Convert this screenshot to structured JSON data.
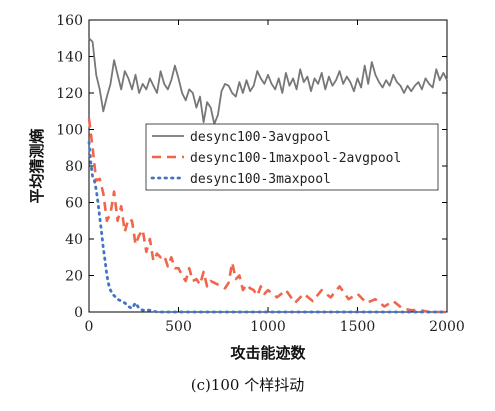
{
  "chart_data": {
    "type": "line",
    "xlabel": "攻击能迹数",
    "ylabel": "平均猜测熵",
    "caption": "(c)100 个样抖动",
    "xlim": [
      0,
      2000
    ],
    "ylim": [
      0,
      160
    ],
    "xticks": [
      0,
      500,
      1000,
      1500,
      2000
    ],
    "yticks": [
      0,
      20,
      40,
      60,
      80,
      100,
      120,
      140,
      160
    ],
    "legend_position": "center-right",
    "series": [
      {
        "name": "desync100-3avgpool",
        "color": "#777777",
        "style": "solid",
        "x": [
          0,
          20,
          40,
          60,
          80,
          100,
          120,
          140,
          160,
          180,
          200,
          220,
          240,
          260,
          280,
          300,
          320,
          340,
          360,
          380,
          400,
          420,
          440,
          460,
          480,
          500,
          520,
          540,
          560,
          580,
          600,
          620,
          640,
          660,
          680,
          700,
          720,
          740,
          760,
          780,
          800,
          820,
          840,
          860,
          880,
          900,
          920,
          940,
          960,
          980,
          1000,
          1020,
          1040,
          1060,
          1080,
          1100,
          1120,
          1140,
          1160,
          1180,
          1200,
          1220,
          1240,
          1260,
          1280,
          1300,
          1320,
          1340,
          1360,
          1380,
          1400,
          1420,
          1440,
          1460,
          1480,
          1500,
          1520,
          1540,
          1560,
          1580,
          1600,
          1620,
          1640,
          1660,
          1680,
          1700,
          1720,
          1740,
          1760,
          1780,
          1800,
          1820,
          1840,
          1860,
          1880,
          1900,
          1920,
          1940,
          1960,
          1980,
          2000
        ],
        "y": [
          150,
          148,
          130,
          122,
          110,
          118,
          125,
          138,
          130,
          122,
          132,
          128,
          122,
          130,
          120,
          125,
          122,
          128,
          124,
          120,
          132,
          125,
          122,
          127,
          135,
          128,
          120,
          116,
          122,
          120,
          112,
          118,
          104,
          115,
          112,
          103,
          108,
          121,
          125,
          124,
          120,
          118,
          126,
          120,
          127,
          121,
          124,
          132,
          128,
          125,
          130,
          125,
          122,
          128,
          120,
          131,
          124,
          128,
          122,
          133,
          126,
          129,
          121,
          128,
          125,
          131,
          122,
          129,
          124,
          127,
          132,
          125,
          129,
          126,
          121,
          128,
          123,
          135,
          125,
          137,
          130,
          126,
          123,
          127,
          124,
          130,
          126,
          124,
          120,
          124,
          121,
          124,
          126,
          122,
          128,
          125,
          123,
          133,
          127,
          131,
          127
        ]
      },
      {
        "name": "desync100-1maxpool-2avgpool",
        "color": "#f0664a",
        "style": "dashed",
        "x": [
          0,
          20,
          40,
          60,
          80,
          100,
          120,
          140,
          160,
          180,
          200,
          220,
          240,
          260,
          280,
          300,
          320,
          340,
          360,
          380,
          400,
          420,
          440,
          460,
          480,
          500,
          520,
          540,
          560,
          580,
          600,
          620,
          640,
          660,
          680,
          700,
          720,
          740,
          760,
          780,
          800,
          820,
          840,
          860,
          880,
          900,
          920,
          940,
          960,
          980,
          1000,
          1050,
          1100,
          1150,
          1200,
          1250,
          1300,
          1350,
          1400,
          1450,
          1500,
          1550,
          1600,
          1650,
          1700,
          1750,
          1800,
          1850,
          1900,
          1950,
          2000
        ],
        "y": [
          106,
          90,
          72,
          73,
          65,
          50,
          54,
          66,
          50,
          58,
          44,
          51,
          50,
          37,
          42,
          45,
          33,
          40,
          28,
          32,
          30,
          31,
          25,
          30,
          24,
          24,
          20,
          17,
          24,
          17,
          18,
          15,
          22,
          14,
          17,
          16,
          15,
          14,
          13,
          16,
          27,
          18,
          20,
          12,
          15,
          13,
          12,
          9,
          14,
          10,
          12,
          8,
          12,
          5,
          10,
          6,
          12,
          8,
          14,
          7,
          10,
          5,
          7,
          3,
          6,
          2,
          1,
          1,
          0,
          0,
          0
        ]
      },
      {
        "name": "desync100-3maxpool",
        "color": "#4472c4",
        "style": "dotted",
        "x": [
          0,
          10,
          20,
          30,
          40,
          50,
          60,
          70,
          80,
          90,
          100,
          110,
          120,
          130,
          140,
          160,
          180,
          200,
          220,
          240,
          260,
          280,
          300,
          320,
          340,
          360,
          380,
          400,
          450,
          500,
          600,
          800,
          1000,
          1500,
          2000
        ],
        "y": [
          93,
          82,
          74,
          72,
          67,
          60,
          52,
          44,
          35,
          28,
          20,
          15,
          12,
          10,
          9,
          7,
          6,
          5,
          3,
          2,
          5,
          2,
          1,
          1,
          1,
          0.5,
          0,
          0,
          0,
          0,
          0,
          0,
          0,
          0,
          0
        ]
      }
    ]
  }
}
